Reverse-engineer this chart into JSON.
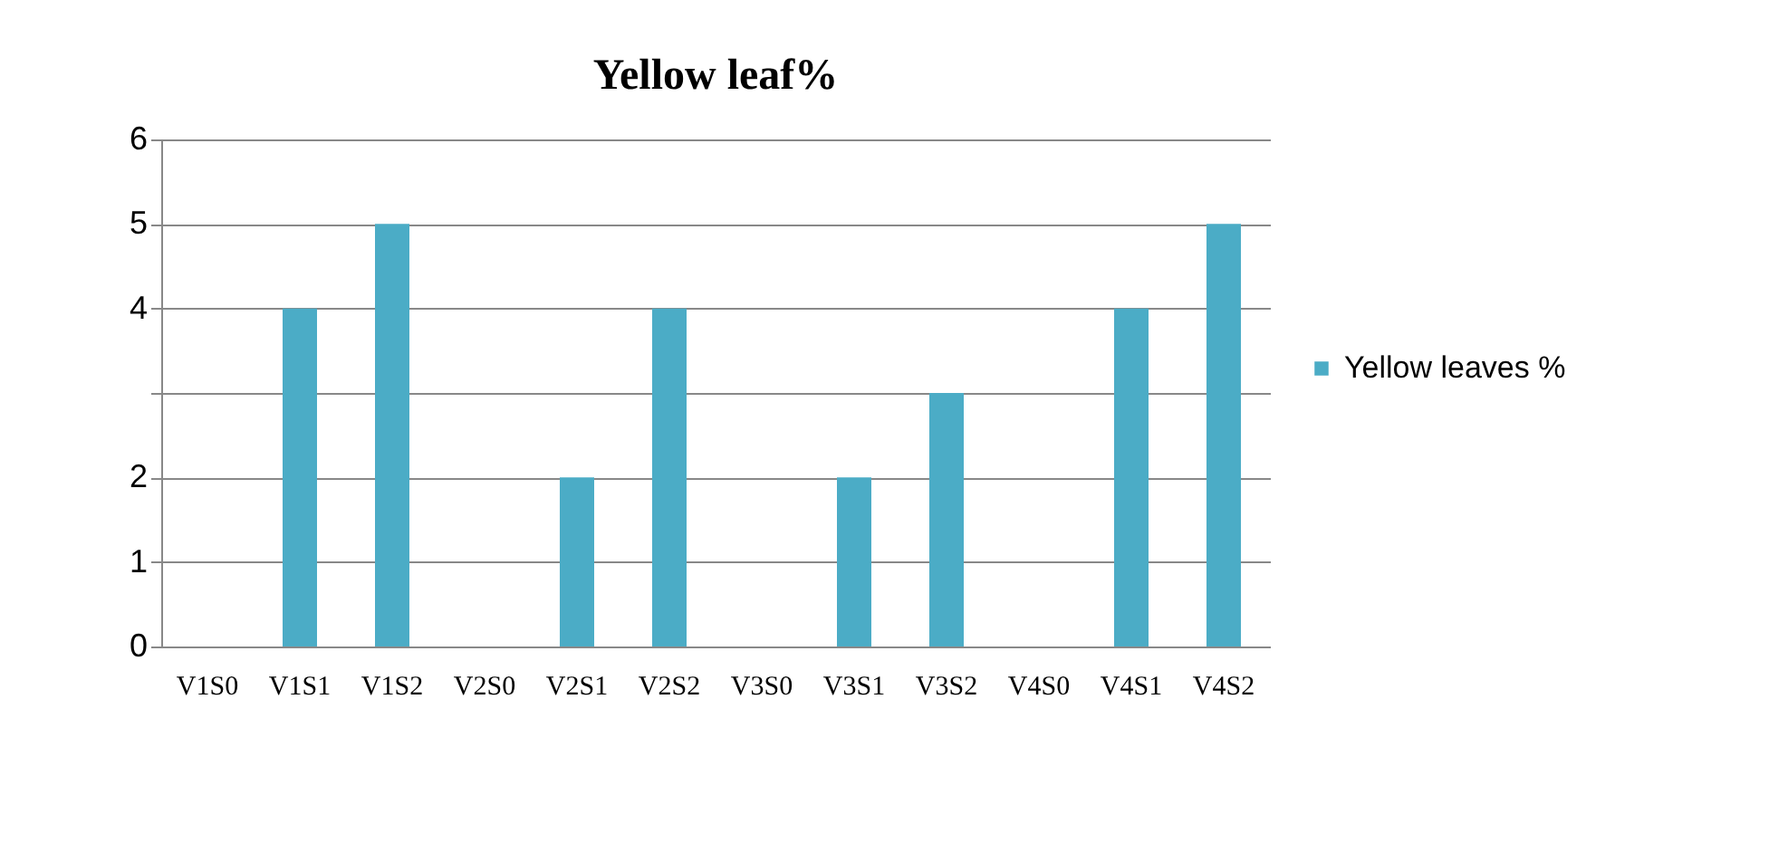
{
  "chart_data": {
    "type": "bar",
    "title": "Yellow leaf%",
    "categories": [
      "V1S0",
      "V1S1",
      "V1S2",
      "V2S0",
      "V2S1",
      "V2S2",
      "V3S0",
      "V3S1",
      "V3S2",
      "V4S0",
      "V4S1",
      "V4S2"
    ],
    "series": [
      {
        "name": "Yellow leaves %",
        "color": "#4bacc6",
        "values": [
          0,
          4,
          5,
          0,
          2,
          4,
          0,
          2,
          3,
          0,
          4,
          5
        ]
      }
    ],
    "ylim": [
      0,
      6
    ],
    "yticks": [
      0,
      1,
      2,
      {
        "value": 3,
        "label": null
      },
      4,
      5,
      6
    ],
    "grid": "y",
    "legend": "right"
  }
}
